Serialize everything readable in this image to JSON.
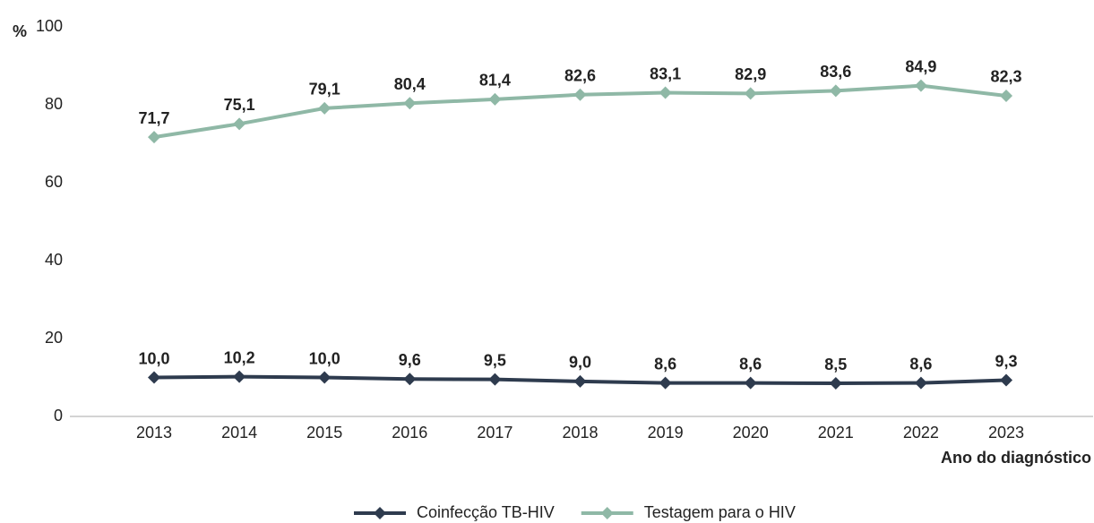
{
  "chart_data": {
    "type": "line",
    "y_label": "%",
    "x_label": "Ano do diagnóstico",
    "categories": [
      "2013",
      "2014",
      "2015",
      "2016",
      "2017",
      "2018",
      "2019",
      "2020",
      "2021",
      "2022",
      "2023"
    ],
    "series": [
      {
        "name": "Coinfecção TB-HIV",
        "color": "#2e3b4e",
        "values": [
          10.0,
          10.2,
          10.0,
          9.6,
          9.5,
          9.0,
          8.6,
          8.6,
          8.5,
          8.6,
          9.3
        ],
        "value_labels": [
          "10,0",
          "10,2",
          "10,0",
          "9,6",
          "9,5",
          "9,0",
          "8,6",
          "8,6",
          "8,5",
          "8,6",
          "9,3"
        ]
      },
      {
        "name": "Testagem para o HIV",
        "color": "#8fb8a6",
        "values": [
          71.7,
          75.1,
          79.1,
          80.4,
          81.4,
          82.6,
          83.1,
          82.9,
          83.6,
          84.9,
          82.3
        ],
        "value_labels": [
          "71,7",
          "75,1",
          "79,1",
          "80,4",
          "81,4",
          "82,6",
          "83,1",
          "82,9",
          "83,6",
          "84,9",
          "82,3"
        ]
      }
    ],
    "ylim": [
      0,
      100
    ],
    "yticks": [
      0,
      20,
      40,
      60,
      80,
      100
    ],
    "grid": false,
    "legend": "bottom"
  }
}
